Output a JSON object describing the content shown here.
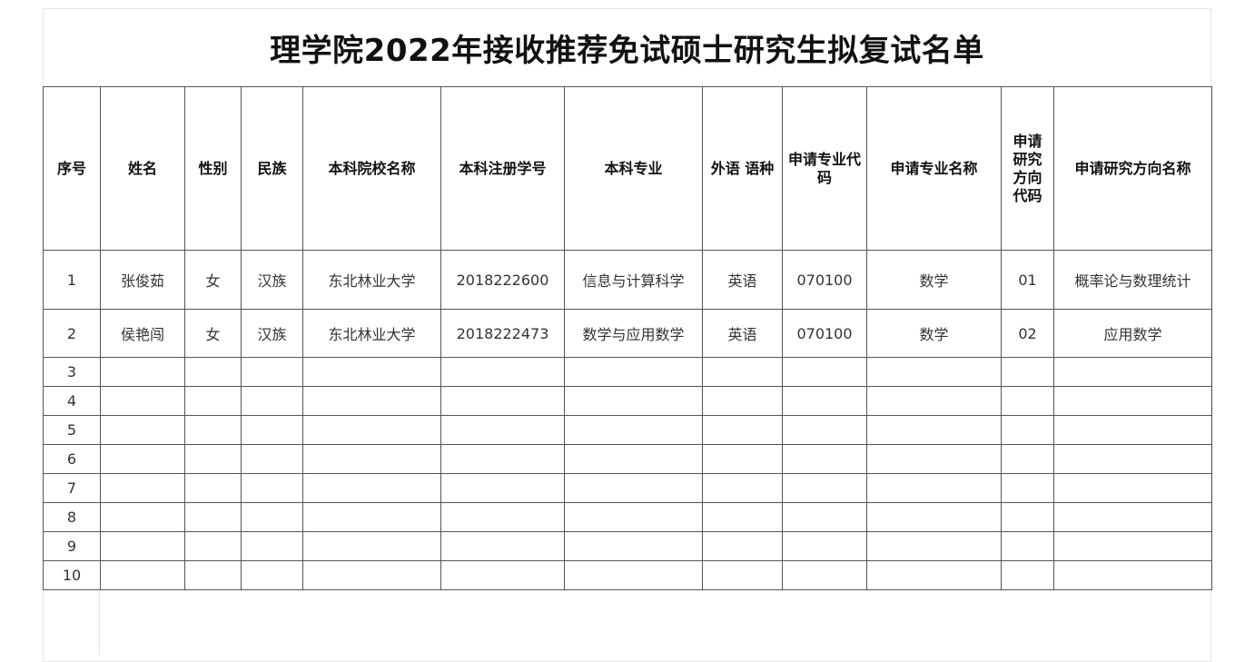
{
  "title": "理学院2022年接收推荐免试硕士研究生拟复试名单",
  "headers": [
    "序号",
    "姓名",
    "性别",
    "民族",
    "本科院校名称",
    "本科注册学号",
    "本科专业",
    "外语  语种",
    "申请专业代码",
    "申请专业名称",
    "申请研究方向代码",
    "申请研究方向名称"
  ],
  "rows": [
    [
      "1",
      "张俊茹",
      "女",
      "汉族",
      "东北林业大学",
      "2018222600",
      "信息与计算科学",
      "英语",
      "070100",
      "数学",
      "01",
      "概率论与数理统计"
    ],
    [
      "2",
      "侯艳闯",
      "女",
      "汉族",
      "东北林业大学",
      "2018222473",
      "数学与应用数学",
      "英语",
      "070100",
      "数学",
      "02",
      "应用数学"
    ],
    [
      "3",
      "",
      "",
      "",
      "",
      "",
      "",
      "",
      "",
      "",
      "",
      ""
    ],
    [
      "4",
      "",
      "",
      "",
      "",
      "",
      "",
      "",
      "",
      "",
      "",
      ""
    ],
    [
      "5",
      "",
      "",
      "",
      "",
      "",
      "",
      "",
      "",
      "",
      "",
      ""
    ],
    [
      "6",
      "",
      "",
      "",
      "",
      "",
      "",
      "",
      "",
      "",
      "",
      ""
    ],
    [
      "7",
      "",
      "",
      "",
      "",
      "",
      "",
      "",
      "",
      "",
      "",
      ""
    ],
    [
      "8",
      "",
      "",
      "",
      "",
      "",
      "",
      "",
      "",
      "",
      "",
      ""
    ],
    [
      "9",
      "",
      "",
      "",
      "",
      "",
      "",
      "",
      "",
      "",
      "",
      ""
    ],
    [
      "10",
      "",
      "",
      "",
      "",
      "",
      "",
      "",
      "",
      "",
      "",
      ""
    ]
  ]
}
